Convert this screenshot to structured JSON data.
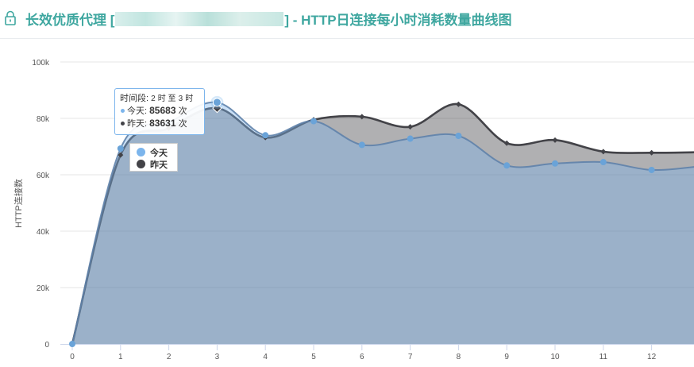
{
  "header": {
    "title_prefix": "长效优质代理 [",
    "title_suffix": "] - HTTP日连接每小时消耗数量曲线图",
    "accent": "#3fa7a0",
    "icon": "lock-icon"
  },
  "tooltip": {
    "time_label": "时间段:",
    "time_from": "2",
    "time_unit1": "时 至",
    "time_to": "3",
    "time_unit2": "时",
    "rows": [
      {
        "name": "今天:",
        "value": "85683",
        "unit": "次",
        "color": "#7cb5ec"
      },
      {
        "name": "昨天:",
        "value": "83631",
        "unit": "次",
        "color": "#434348"
      }
    ]
  },
  "legend": {
    "items": [
      {
        "name": "今天",
        "color": "#7cb5ec"
      },
      {
        "name": "昨天",
        "color": "#434348"
      }
    ]
  },
  "chart_data": {
    "type": "area",
    "ylabel": "HTTP连接数",
    "xlabel": "",
    "x": [
      0,
      1,
      2,
      3,
      4,
      5,
      6,
      7,
      8,
      9,
      10,
      11,
      12,
      13
    ],
    "xticks": [
      0,
      1,
      2,
      3,
      4,
      5,
      6,
      7,
      8,
      9,
      10,
      11,
      12
    ],
    "ylim": [
      0,
      100000
    ],
    "yticks": [
      0,
      20000,
      40000,
      60000,
      80000,
      100000
    ],
    "ytick_labels": [
      "0",
      "20k",
      "40k",
      "60k",
      "80k",
      "100k"
    ],
    "grid": true,
    "legend_position": "top-left",
    "highlight_index": 3,
    "series": [
      {
        "name": "昨天",
        "color": "#434348",
        "values": [
          0,
          67000,
          76500,
          83631,
          73200,
          79500,
          80600,
          77000,
          85000,
          71200,
          72300,
          68200,
          67800,
          68000
        ]
      },
      {
        "name": "今天",
        "color": "#7cb5ec",
        "values": [
          0,
          69300,
          78500,
          85683,
          74000,
          79000,
          70600,
          72800,
          73800,
          63300,
          64000,
          64500,
          61700,
          63000
        ]
      }
    ]
  }
}
